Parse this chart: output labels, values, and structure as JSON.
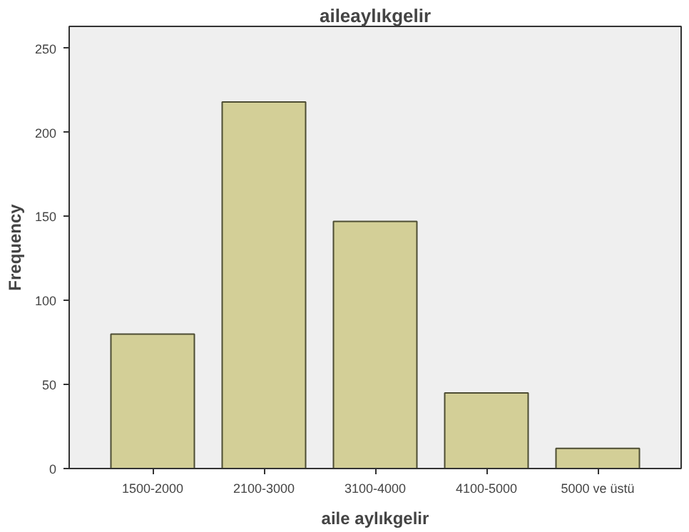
{
  "chart_data": {
    "type": "bar",
    "title": "aileaylıkgelir",
    "xlabel": "aile aylıkgelir",
    "ylabel": "Frequency",
    "categories": [
      "1500-2000",
      "2100-3000",
      "3100-4000",
      "4100-5000",
      "5000 ve üstü"
    ],
    "values": [
      80,
      218,
      147,
      45,
      12
    ],
    "color": "#d3cf97",
    "ylim": [
      0,
      263
    ],
    "yticks": [
      0,
      50,
      100,
      150,
      200,
      250
    ],
    "grid": false
  }
}
